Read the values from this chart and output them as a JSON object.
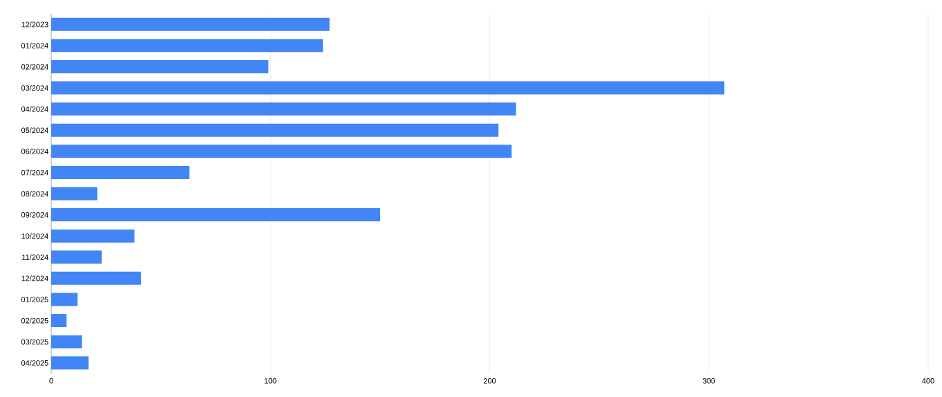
{
  "chart_data": {
    "type": "bar",
    "orientation": "horizontal",
    "categories": [
      "12/2023",
      "01/2024",
      "02/2024",
      "03/2024",
      "04/2024",
      "05/2024",
      "06/2024",
      "07/2024",
      "08/2024",
      "09/2024",
      "10/2024",
      "11/2024",
      "12/2024",
      "01/2025",
      "02/2025",
      "03/2025",
      "04/2025"
    ],
    "values": [
      127,
      124,
      99,
      307,
      212,
      204,
      210,
      63,
      21,
      150,
      38,
      23,
      41,
      12,
      7,
      14,
      17
    ],
    "color": "#4285f4",
    "xlim": [
      0,
      400
    ],
    "xticks": [
      0,
      100,
      200,
      300,
      400
    ],
    "grid": "x"
  }
}
